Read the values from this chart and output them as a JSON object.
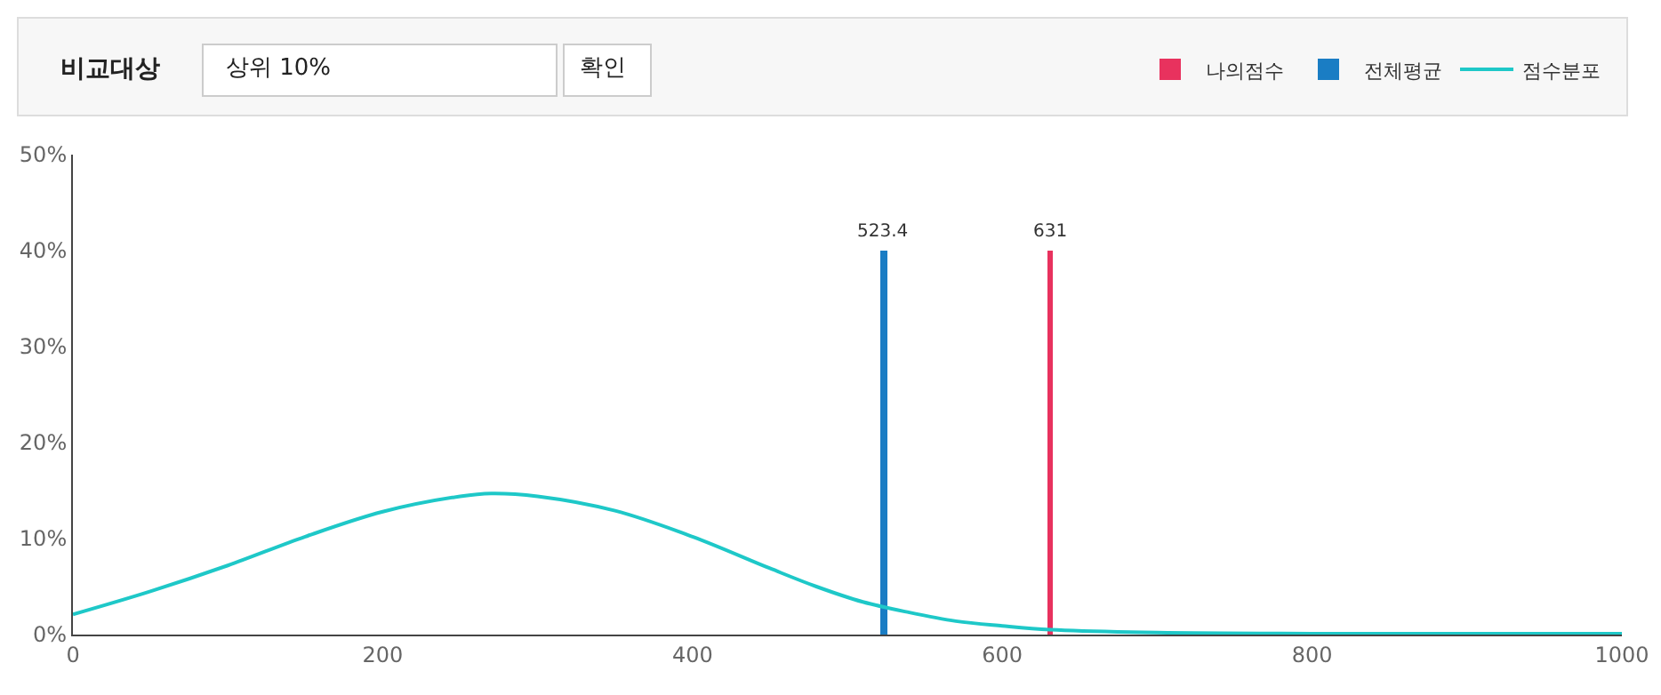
{
  "chart_data": {
    "type": "line",
    "annotations": [
      "비교대상",
      "상위 10%",
      "확인",
      {
        "text": "631",
        "x": 631,
        "y": 40
      },
      {
        "text": "523.4",
        "x": 523.4,
        "y": 40
      }
    ],
    "series": [
      {
        "name": "나의점수",
        "color": "#e8325e",
        "type": "bar",
        "x": [
          631
        ],
        "values": [
          40
        ]
      },
      {
        "name": "전체평균",
        "color": "#1a7dc4",
        "type": "bar",
        "x": [
          523.4
        ],
        "values": [
          40
        ]
      },
      {
        "name": "점수분포",
        "color": "#1ec8c8",
        "x": [
          0,
          50,
          100,
          150,
          200,
          250,
          270,
          300,
          350,
          400,
          450,
          480,
          510,
          540,
          570,
          600,
          631,
          700,
          800,
          1000
        ],
        "values": [
          2.1,
          4.5,
          7.2,
          10.2,
          12.8,
          14.4,
          14.7,
          14.4,
          12.9,
          10.2,
          6.9,
          5,
          3.4,
          2.3,
          1.4,
          0.9,
          0.5,
          0.2,
          0.1,
          0.1
        ]
      }
    ],
    "xlim": [
      0,
      1000
    ],
    "xticks": [
      0,
      200,
      400,
      600,
      800,
      1000
    ],
    "ylim": [
      0,
      50
    ],
    "yticks": [
      {
        "value": 0,
        "label": "0%"
      },
      {
        "value": 10,
        "label": "10%"
      },
      {
        "value": 20,
        "label": "20%"
      },
      {
        "value": 30,
        "label": "30%"
      },
      {
        "value": 40,
        "label": "40%"
      },
      {
        "value": 50,
        "label": "50%"
      }
    ],
    "legend": "top right"
  }
}
